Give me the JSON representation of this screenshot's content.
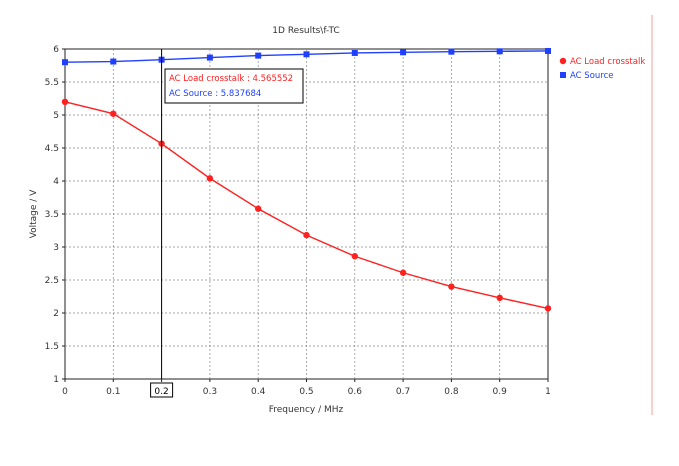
{
  "chart_data": {
    "type": "line",
    "title": "1D Results\\f-TC",
    "xlabel": "Frequency / MHz",
    "ylabel": "Voltage / V",
    "xlim": [
      0,
      1
    ],
    "ylim": [
      1,
      6
    ],
    "x_ticks": [
      "0",
      "0.1",
      "0.2",
      "0.3",
      "0.4",
      "0.5",
      "0.6",
      "0.7",
      "0.8",
      "0.9",
      "1"
    ],
    "y_ticks": [
      "1",
      "1.5",
      "2",
      "2.5",
      "3",
      "3.5",
      "4",
      "4.5",
      "5",
      "5.5",
      "6"
    ],
    "grid": true,
    "legend_position": "right",
    "x": [
      0,
      0.1,
      0.2,
      0.3,
      0.4,
      0.5,
      0.6,
      0.7,
      0.8,
      0.9,
      1.0
    ],
    "series": [
      {
        "name": "AC Load crosstalk",
        "color": "#ff2020",
        "marker": "circle",
        "values": [
          5.2,
          5.02,
          4.565552,
          4.04,
          3.58,
          3.18,
          2.86,
          2.61,
          2.4,
          2.23,
          2.07
        ]
      },
      {
        "name": "AC Source",
        "color": "#2040ff",
        "marker": "square",
        "values": [
          5.8,
          5.81,
          5.837684,
          5.87,
          5.9,
          5.92,
          5.94,
          5.95,
          5.96,
          5.965,
          5.97
        ]
      }
    ],
    "cursor": {
      "x_label": "0.2",
      "lines": [
        "AC Load crosstalk : 4.565552",
        "AC Source : 5.837684"
      ]
    }
  }
}
